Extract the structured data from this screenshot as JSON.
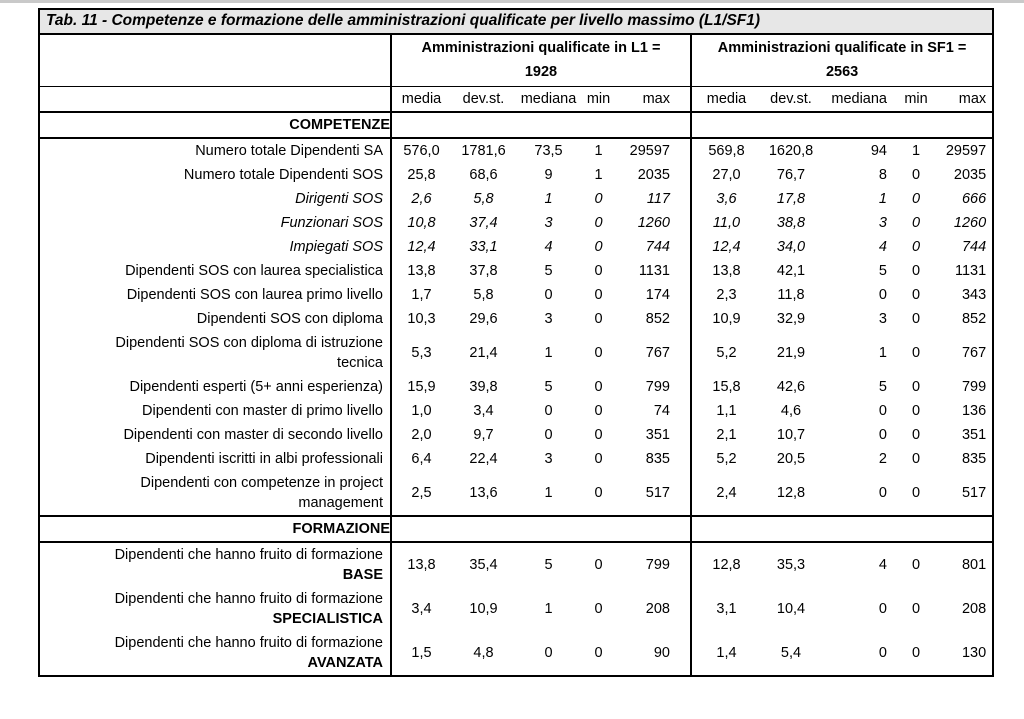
{
  "table": {
    "title": "Tab. 11 - Competenze e formazione delle amministrazioni qualificate per livello massimo (L1/SF1)",
    "title_bg_color": "#e7e7e7",
    "border_color": "#000000",
    "groups": [
      {
        "line1": "Amministrazioni qualificate in L1 =",
        "line2": "1928"
      },
      {
        "line1": "Amministrazioni qualificate in SF1 =",
        "line2": "2563"
      }
    ],
    "stat_headers": [
      "media",
      "dev.st.",
      "mediana",
      "min",
      "max"
    ],
    "sections": [
      {
        "header": "COMPETENZE",
        "rows": [
          {
            "label_lines": [
              "Numero totale Dipendenti SA"
            ],
            "italic": false,
            "l1": [
              "576,0",
              "1781,6",
              "73,5",
              "1",
              "29597"
            ],
            "sf1": [
              "569,8",
              "1620,8",
              "94",
              "1",
              "29597"
            ]
          },
          {
            "label_lines": [
              "Numero totale Dipendenti SOS"
            ],
            "italic": false,
            "l1": [
              "25,8",
              "68,6",
              "9",
              "1",
              "2035"
            ],
            "sf1": [
              "27,0",
              "76,7",
              "8",
              "0",
              "2035"
            ]
          },
          {
            "label_lines": [
              "Dirigenti SOS"
            ],
            "italic": true,
            "l1": [
              "2,6",
              "5,8",
              "1",
              "0",
              "117"
            ],
            "sf1": [
              "3,6",
              "17,8",
              "1",
              "0",
              "666"
            ]
          },
          {
            "label_lines": [
              "Funzionari SOS"
            ],
            "italic": true,
            "l1": [
              "10,8",
              "37,4",
              "3",
              "0",
              "1260"
            ],
            "sf1": [
              "11,0",
              "38,8",
              "3",
              "0",
              "1260"
            ]
          },
          {
            "label_lines": [
              "Impiegati SOS"
            ],
            "italic": true,
            "l1": [
              "12,4",
              "33,1",
              "4",
              "0",
              "744"
            ],
            "sf1": [
              "12,4",
              "34,0",
              "4",
              "0",
              "744"
            ]
          },
          {
            "label_lines": [
              "Dipendenti SOS con laurea specialistica"
            ],
            "italic": false,
            "l1": [
              "13,8",
              "37,8",
              "5",
              "0",
              "1131"
            ],
            "sf1": [
              "13,8",
              "42,1",
              "5",
              "0",
              "1131"
            ]
          },
          {
            "label_lines": [
              "Dipendenti SOS con laurea primo livello"
            ],
            "italic": false,
            "l1": [
              "1,7",
              "5,8",
              "0",
              "0",
              "174"
            ],
            "sf1": [
              "2,3",
              "11,8",
              "0",
              "0",
              "343"
            ]
          },
          {
            "label_lines": [
              "Dipendenti SOS con diploma"
            ],
            "italic": false,
            "l1": [
              "10,3",
              "29,6",
              "3",
              "0",
              "852"
            ],
            "sf1": [
              "10,9",
              "32,9",
              "3",
              "0",
              "852"
            ]
          },
          {
            "label_lines": [
              "Dipendenti SOS con diploma di istruzione",
              "tecnica"
            ],
            "italic": false,
            "l1": [
              "5,3",
              "21,4",
              "1",
              "0",
              "767"
            ],
            "sf1": [
              "5,2",
              "21,9",
              "1",
              "0",
              "767"
            ]
          },
          {
            "label_lines": [
              "Dipendenti esperti (5+ anni esperienza)"
            ],
            "italic": false,
            "l1": [
              "15,9",
              "39,8",
              "5",
              "0",
              "799"
            ],
            "sf1": [
              "15,8",
              "42,6",
              "5",
              "0",
              "799"
            ]
          },
          {
            "label_lines": [
              "Dipendenti con master di primo livello"
            ],
            "italic": false,
            "l1": [
              "1,0",
              "3,4",
              "0",
              "0",
              "74"
            ],
            "sf1": [
              "1,1",
              "4,6",
              "0",
              "0",
              "136"
            ]
          },
          {
            "label_lines": [
              "Dipendenti con master di secondo livello"
            ],
            "italic": false,
            "l1": [
              "2,0",
              "9,7",
              "0",
              "0",
              "351"
            ],
            "sf1": [
              "2,1",
              "10,7",
              "0",
              "0",
              "351"
            ]
          },
          {
            "label_lines": [
              "Dipendenti iscritti in albi professionali"
            ],
            "italic": false,
            "l1": [
              "6,4",
              "22,4",
              "3",
              "0",
              "835"
            ],
            "sf1": [
              "5,2",
              "20,5",
              "2",
              "0",
              "835"
            ]
          },
          {
            "label_lines": [
              "Dipendenti con competenze in project",
              "management"
            ],
            "italic": false,
            "l1": [
              "2,5",
              "13,6",
              "1",
              "0",
              "517"
            ],
            "sf1": [
              "2,4",
              "12,8",
              "0",
              "0",
              "517"
            ]
          }
        ]
      },
      {
        "header": "FORMAZIONE",
        "rows": [
          {
            "label_lines": [
              "Dipendenti che hanno fruito di formazione"
            ],
            "bold_suffix": "BASE",
            "italic": false,
            "l1": [
              "13,8",
              "35,4",
              "5",
              "0",
              "799"
            ],
            "sf1": [
              "12,8",
              "35,3",
              "4",
              "0",
              "801"
            ]
          },
          {
            "label_lines": [
              "Dipendenti che hanno fruito di formazione"
            ],
            "bold_suffix": "SPECIALISTICA",
            "italic": false,
            "l1": [
              "3,4",
              "10,9",
              "1",
              "0",
              "208"
            ],
            "sf1": [
              "3,1",
              "10,4",
              "0",
              "0",
              "208"
            ]
          },
          {
            "label_lines": [
              "Dipendenti che hanno fruito di formazione"
            ],
            "bold_suffix": "AVANZATA",
            "italic": false,
            "l1": [
              "1,5",
              "4,8",
              "0",
              "0",
              "90"
            ],
            "sf1": [
              "1,4",
              "5,4",
              "0",
              "0",
              "130"
            ]
          }
        ]
      }
    ]
  }
}
